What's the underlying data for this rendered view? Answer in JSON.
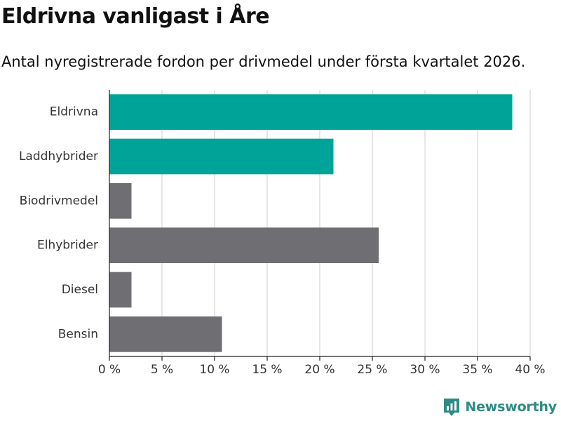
{
  "title": "Eldrivna vanligast i Åre",
  "subtitle": "Antal nyregistrerade fordon per drivmedel under första kvartalet 2026.",
  "brand": {
    "name": "Newsworthy",
    "icon": "bar-chart-icon",
    "color": "#2f8a84"
  },
  "chart_data": {
    "type": "bar",
    "orientation": "horizontal",
    "categories": [
      "Eldrivna",
      "Laddhybrider",
      "Biodrivmedel",
      "Elhybrider",
      "Diesel",
      "Bensin"
    ],
    "values": [
      38.3,
      21.3,
      2.1,
      25.6,
      2.1,
      10.7
    ],
    "bar_colors": [
      "#00a398",
      "#00a398",
      "#6f6e73",
      "#6f6e73",
      "#6f6e73",
      "#6f6e73"
    ],
    "xlim": [
      0,
      40
    ],
    "xticks": [
      0,
      5,
      10,
      15,
      20,
      25,
      30,
      35,
      40
    ],
    "tick_labels": [
      "0 %",
      "5 %",
      "10 %",
      "15 %",
      "20 %",
      "25 %",
      "30 %",
      "35 %",
      "40 %"
    ],
    "grid": "vertical",
    "grid_color": "#dddddd",
    "axis_color": "#222222"
  }
}
